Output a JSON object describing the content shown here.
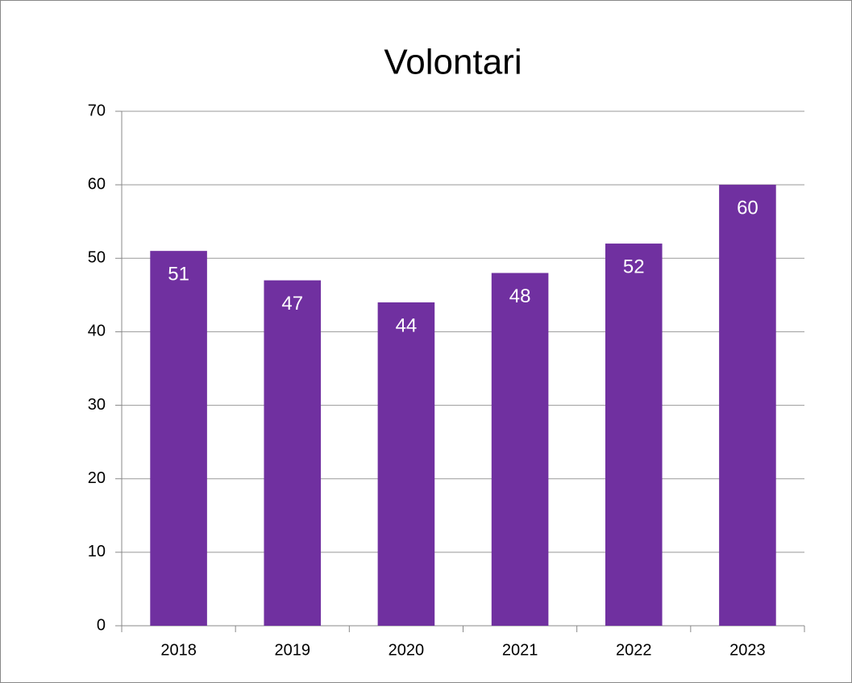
{
  "chart_data": {
    "type": "bar",
    "title": "Volontari",
    "categories": [
      "2018",
      "2019",
      "2020",
      "2021",
      "2022",
      "2023"
    ],
    "values": [
      51,
      47,
      44,
      48,
      52,
      60
    ],
    "color": "#7030a0",
    "ylim": [
      0,
      70
    ],
    "yticks": [
      0,
      10,
      20,
      30,
      40,
      50,
      60,
      70
    ],
    "grid": true
  }
}
